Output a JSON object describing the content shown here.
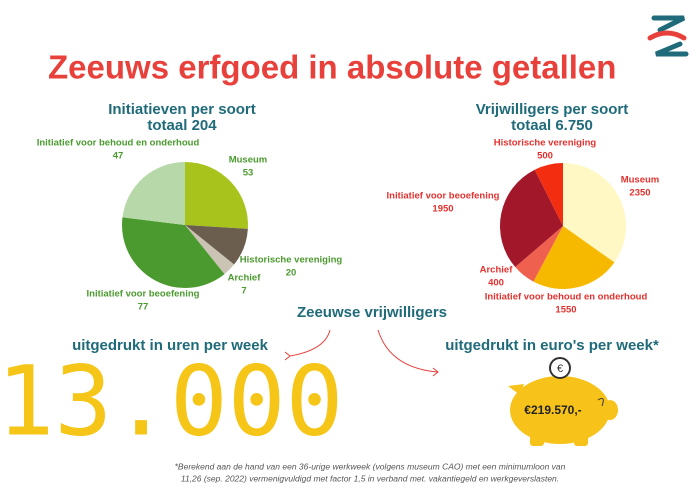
{
  "header": {
    "title": "Zeeuws erfgoed in absolute getallen"
  },
  "chart_data": [
    {
      "type": "pie",
      "title": "Initiatieven per soort",
      "subtitle": "totaal 204",
      "categories": [
        "Museum",
        "Historische vereniging",
        "Archief",
        "Initiatief voor beoefening",
        "Initiatief voor behoud en onderhoud"
      ],
      "values": [
        53,
        20,
        7,
        77,
        47
      ],
      "colors": [
        "#a8c41c",
        "#6b5e4e",
        "#cbc3b3",
        "#4b9a2f",
        "#b7d9aa"
      ],
      "label_color": "#4b9a2f"
    },
    {
      "type": "pie",
      "title": "Vrijwilligers per soort",
      "subtitle": "totaal 6.750",
      "categories": [
        "Museum",
        "Initiatief voor behoud en onderhoud",
        "Archief",
        "Initiatief voor beoefening",
        "Historische vereniging"
      ],
      "values": [
        2350,
        1550,
        400,
        1950,
        500
      ],
      "colors": [
        "#fff8c4",
        "#f7b900",
        "#f0604e",
        "#a2182a",
        "#f22d10"
      ],
      "label_color": "#e2322f"
    }
  ],
  "volunteers": {
    "heading": "Zeeuwse vrijwilligers",
    "hours_label": "uitgedrukt in uren per week",
    "hours": "13.000",
    "euros_label": "uitgedrukt in euro's per week*",
    "euros": "€219.570,-"
  },
  "footnote": [
    "*Berekend aan de hand van een 36-urige werkweek (volgens museum CAO) met een minimumloon van",
    "11,26 (sep. 2022) vermenigvuldigd met factor 1,5 in verband met. vakantiegeld en werkgeverslasten."
  ]
}
